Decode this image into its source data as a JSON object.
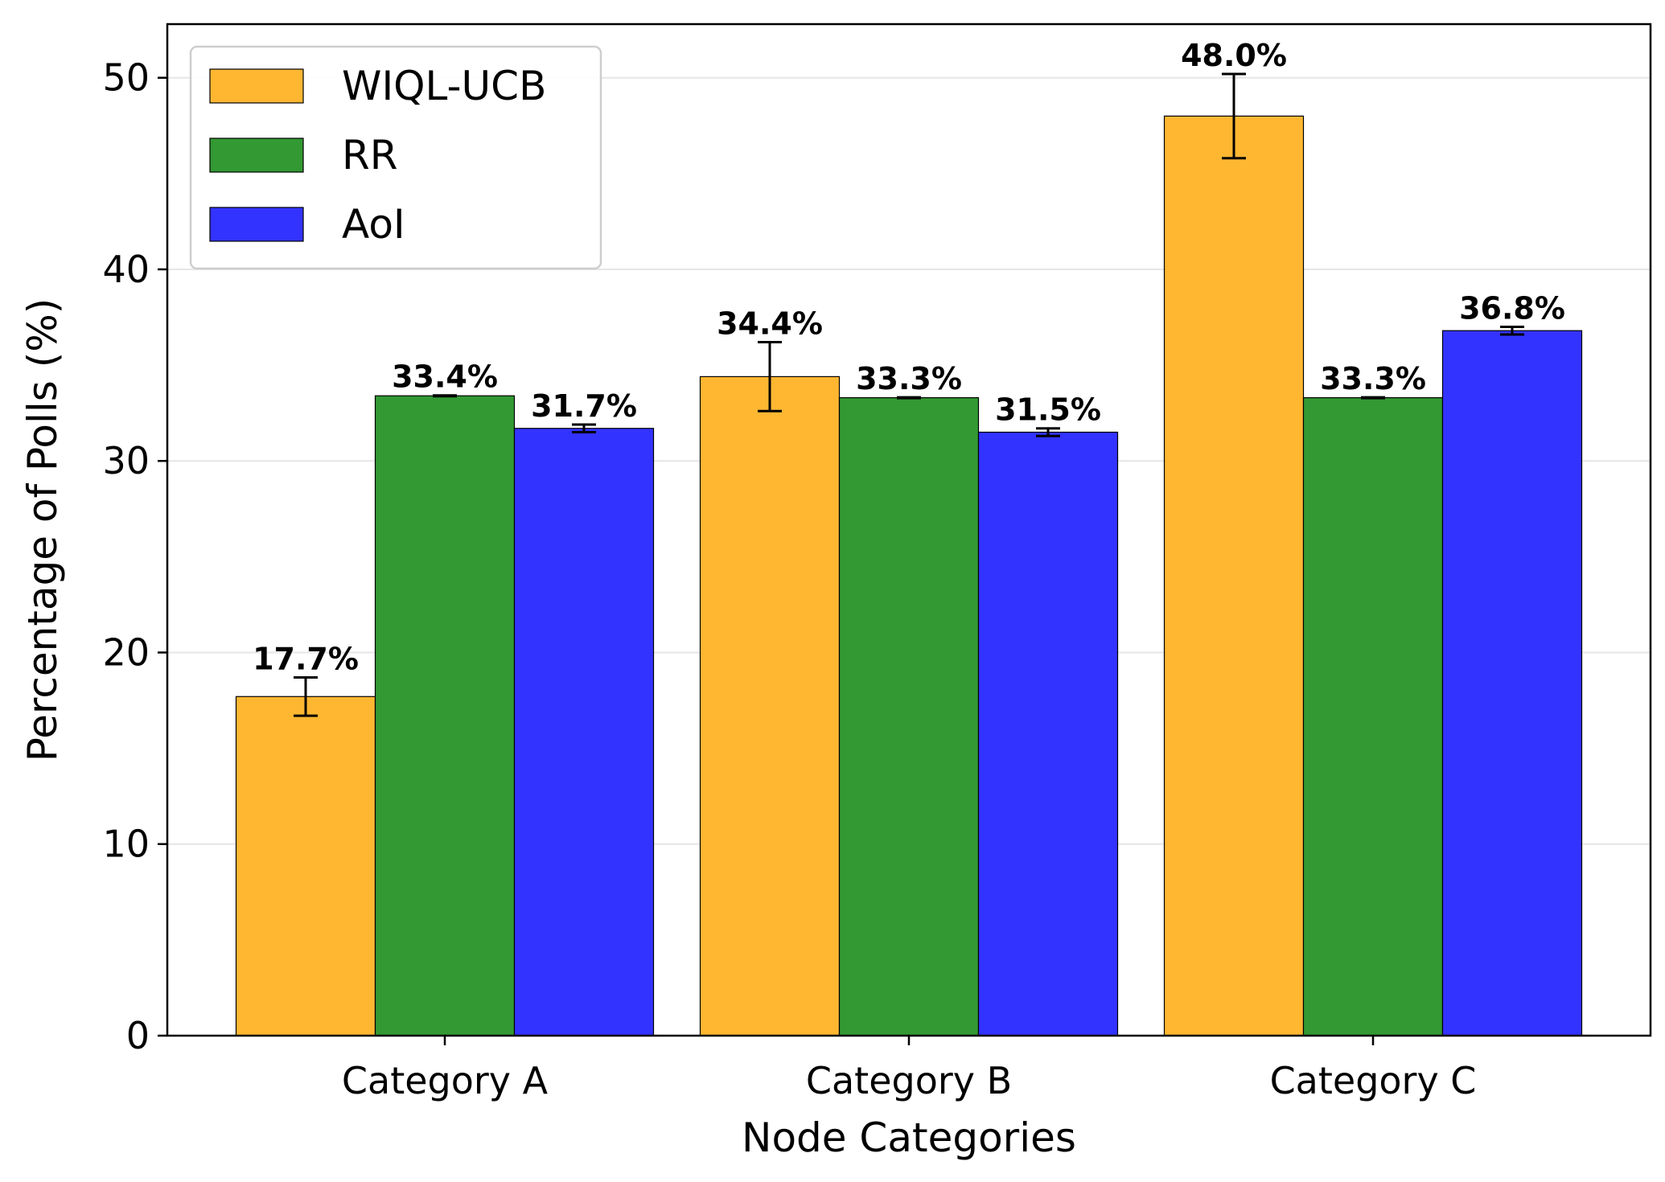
{
  "chart_data": {
    "type": "bar",
    "title": "",
    "xlabel": "Node Categories",
    "ylabel": "Percentage of Polls (%)",
    "categories": [
      "Category A",
      "Category B",
      "Category C"
    ],
    "ylim": [
      0,
      52.8
    ],
    "yticks": [
      "0",
      "10",
      "20",
      "30",
      "40",
      "50"
    ],
    "grid": "horizontal",
    "legend_position": "top-left",
    "series": [
      {
        "name": "WIQL-UCB",
        "color": "#FFB732",
        "values": [
          17.7,
          34.4,
          48.0
        ],
        "errors": [
          1.0,
          1.8,
          2.2
        ],
        "labels": [
          "17.7%",
          "34.4%",
          "48.0%"
        ]
      },
      {
        "name": "RR",
        "color": "#339933",
        "values": [
          33.4,
          33.3,
          33.3
        ],
        "errors": [
          0.02,
          0.02,
          0.02
        ],
        "labels": [
          "33.4%",
          "33.3%",
          "33.3%"
        ]
      },
      {
        "name": "AoI",
        "color": "#3333FF",
        "values": [
          31.7,
          31.5,
          36.8
        ],
        "errors": [
          0.2,
          0.2,
          0.2
        ],
        "labels": [
          "31.7%",
          "31.5%",
          "36.8%"
        ]
      }
    ]
  }
}
